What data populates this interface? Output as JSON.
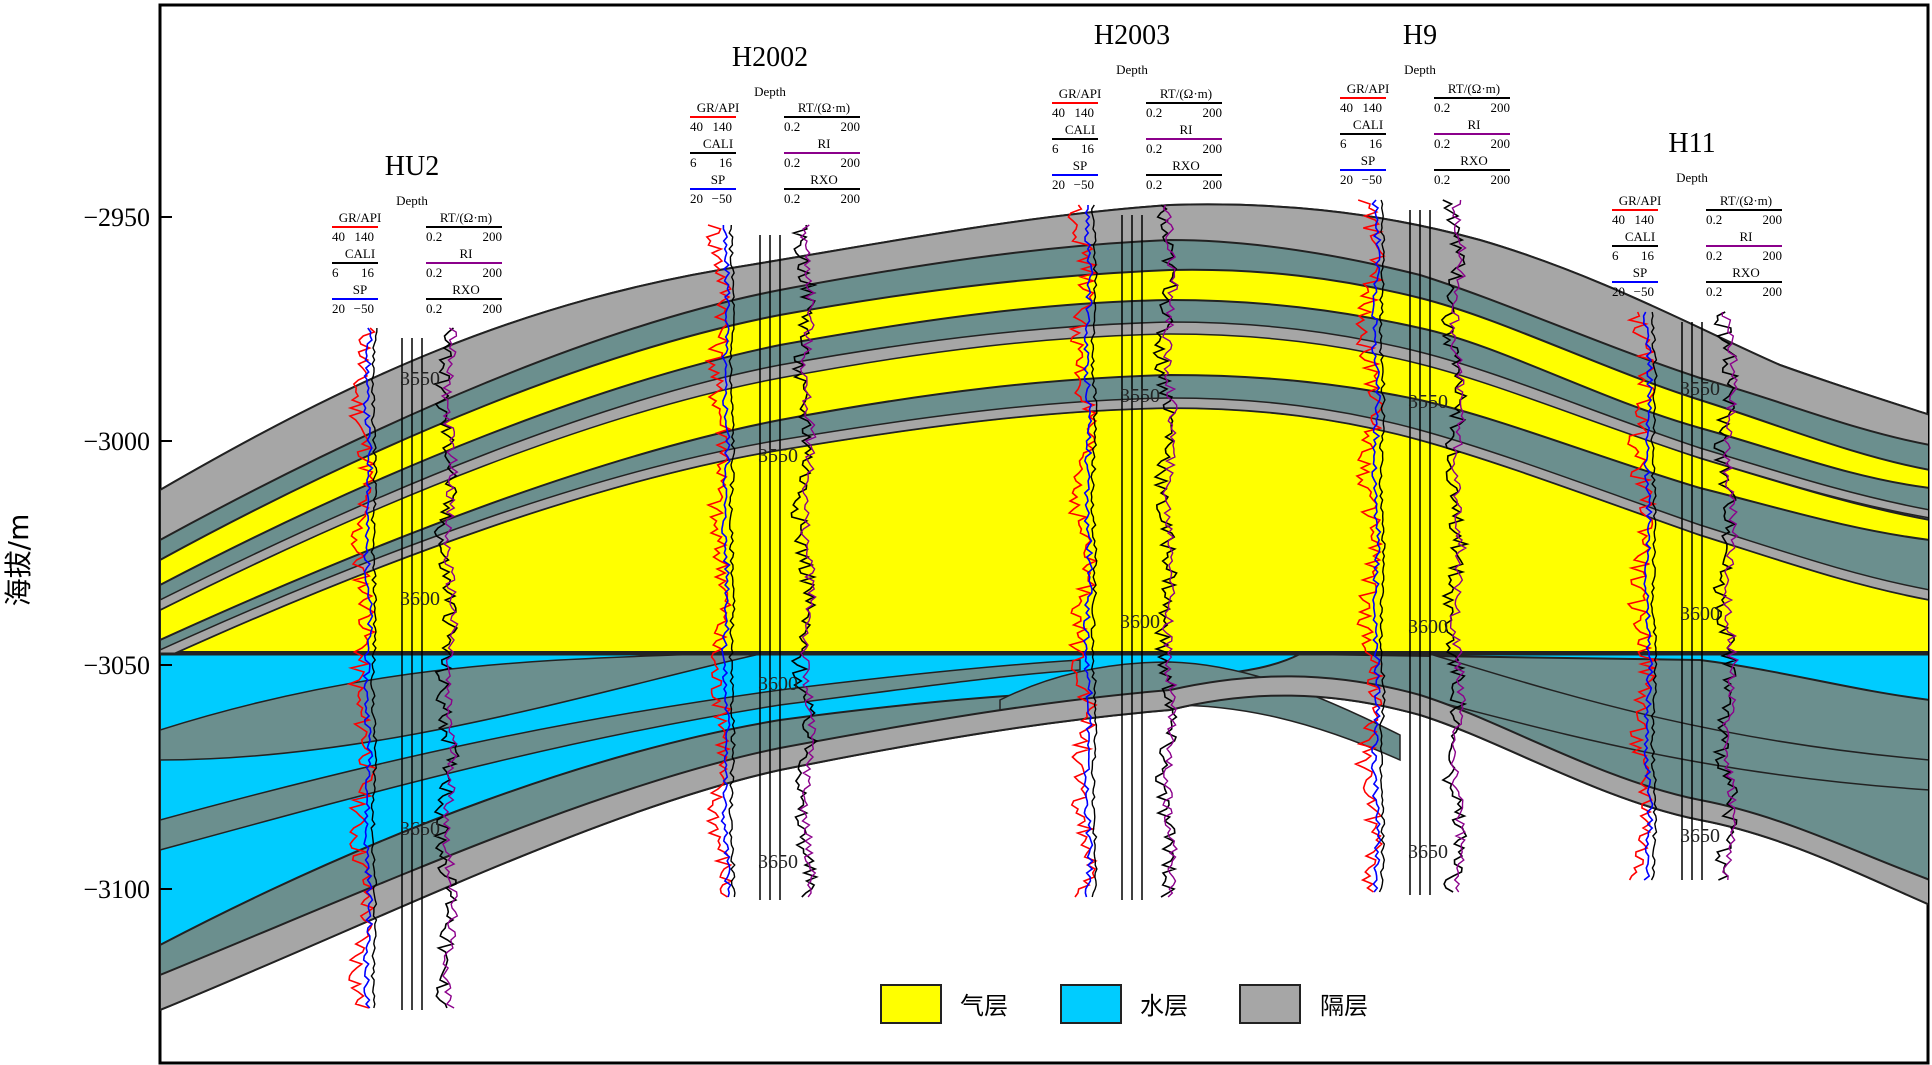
{
  "axis": {
    "ylabel": "海拔/m",
    "ticks": [
      {
        "label": "−2950",
        "value": -2950
      },
      {
        "label": "−3000",
        "value": -3000
      },
      {
        "label": "−3050",
        "value": -3050
      },
      {
        "label": "−3100",
        "value": -3100
      }
    ],
    "ymin": -2991,
    "ymax": -2949
  },
  "colors": {
    "gas": "#ffff00",
    "water": "#00ccff",
    "barrier": "#a6a6a6",
    "shale": "#6b8f8e",
    "gr_curve": "#ff0000",
    "sp_curve": "#0000ff",
    "ri_curve": "#8b008b",
    "rt_curve": "#000000"
  },
  "gas_water_contact": -3047,
  "track_labels": {
    "gr": "GR/API",
    "gr_min": "40",
    "gr_max": "140",
    "cali": "CALI",
    "cali_min": "6",
    "cali_max": "16",
    "sp": "SP",
    "sp_min": "20",
    "sp_max": "−50",
    "rt": "RT/(Ω·m)",
    "ri": "RI",
    "rxo": "RXO",
    "res_min": "0.2",
    "res_max": "200",
    "depth": "Depth"
  },
  "wells": [
    {
      "name": "HU2",
      "marks": [
        "3550",
        "3600",
        "3650"
      ]
    },
    {
      "name": "H2002",
      "marks": [
        "3550",
        "3600",
        "3650"
      ]
    },
    {
      "name": "H2003",
      "marks": [
        "3550",
        "3600"
      ]
    },
    {
      "name": "H9",
      "marks": [
        "3550",
        "3600",
        "3650"
      ]
    },
    {
      "name": "H11",
      "marks": [
        "3550",
        "3600",
        "3650"
      ]
    }
  ],
  "legend": [
    {
      "label": "气层",
      "color": "#ffff00"
    },
    {
      "label": "水层",
      "color": "#00ccff"
    },
    {
      "label": "隔层",
      "color": "#a6a6a6"
    }
  ]
}
